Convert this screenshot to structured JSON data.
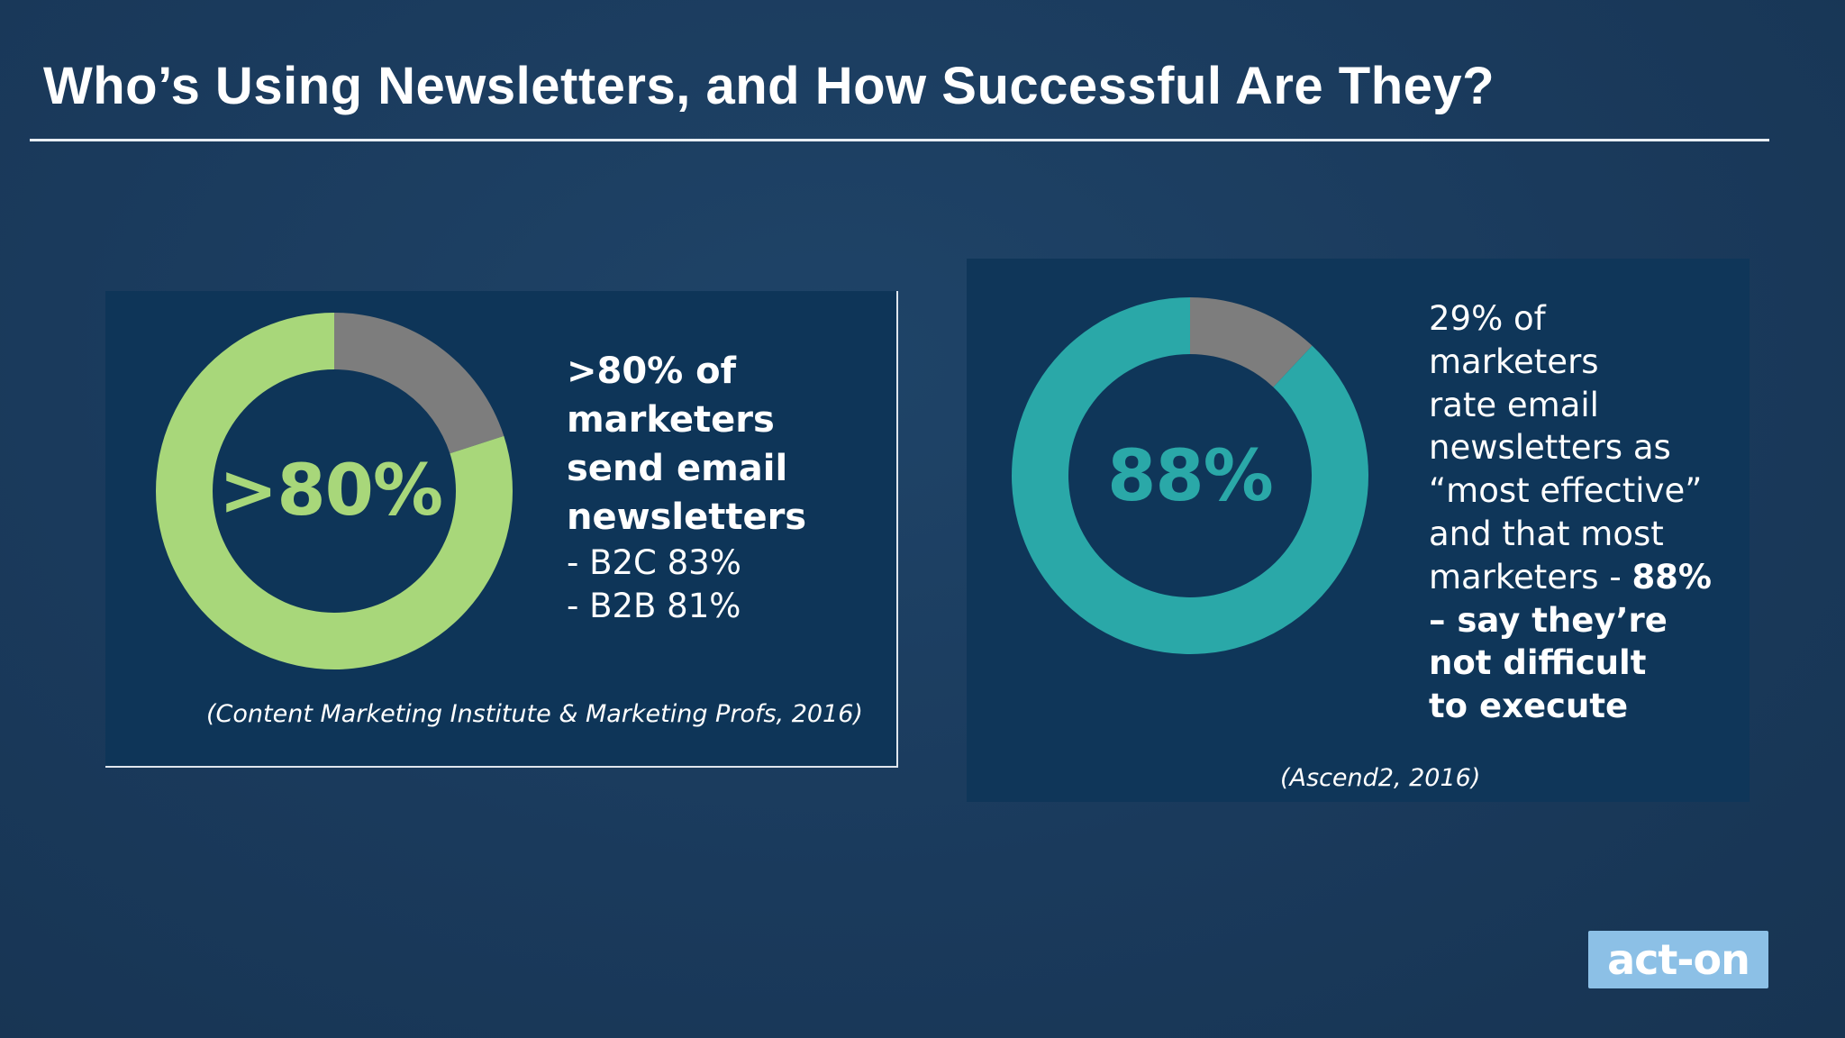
{
  "slide": {
    "title": "Who’s Using Newsletters, and How Successful Are They?"
  },
  "left_panel": {
    "center_label": ">80%",
    "headline_lines": [
      ">80% of",
      "marketers",
      "send email",
      "newsletters"
    ],
    "sub_lines": [
      "- B2C 83%",
      "- B2B 81%"
    ],
    "source": "(Content Marketing Institute & Marketing Profs, 2016)"
  },
  "right_panel": {
    "center_label": "88%",
    "text_lines_regular": [
      "29% of",
      "marketers",
      "rate email",
      "newsletters as",
      "“most effective”",
      "and that most"
    ],
    "line7_regular": "marketers - ",
    "line7_bold": "88%",
    "text_lines_bold": [
      "– say they’re",
      "not difficult",
      "to execute"
    ],
    "source": "(Ascend2, 2016)"
  },
  "logo": {
    "text": "act-on"
  },
  "colors": {
    "background": "#1a3a5c",
    "panel": "#0e3558",
    "green": "#a8d77a",
    "teal": "#2aa8a8",
    "gray": "#7d7d7d"
  },
  "chart_data": [
    {
      "type": "pie",
      "title": "",
      "center_label": ">80%",
      "values": [
        80,
        20
      ],
      "colors": [
        "#a8d77a",
        "#7d7d7d"
      ]
    },
    {
      "type": "pie",
      "title": "",
      "center_label": "88%",
      "values": [
        88,
        12
      ],
      "colors": [
        "#2aa8a8",
        "#7d7d7d"
      ]
    }
  ]
}
